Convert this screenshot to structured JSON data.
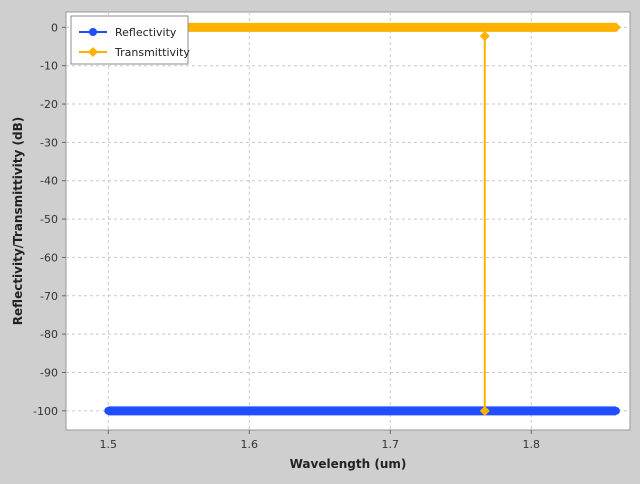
{
  "chart_data": {
    "type": "line",
    "title": "",
    "xlabel": "Wavelength (um)",
    "ylabel": "Reflectivity/Transmittivity (dB)",
    "xlim": [
      1.47,
      1.87
    ],
    "ylim": [
      -105,
      4
    ],
    "x_ticks": [
      1.5,
      1.6,
      1.7,
      1.8
    ],
    "x_tick_labels": [
      "1.5",
      "1.6",
      "1.7",
      "1.8"
    ],
    "y_ticks": [
      0,
      -10,
      -20,
      -30,
      -40,
      -50,
      -60,
      -70,
      -80,
      -90,
      -100
    ],
    "y_tick_labels": [
      "0",
      "-10",
      "-20",
      "-30",
      "-40",
      "-50",
      "-60",
      "-70",
      "-80",
      "-90",
      "-100"
    ],
    "grid": true,
    "legend_position": "top-left",
    "series": [
      {
        "name": "Reflectivity",
        "color": "#1f4dff",
        "marker": "circle",
        "x_range": [
          1.5,
          1.86
        ],
        "y": -100,
        "points": [
          [
            1.5,
            -100
          ],
          [
            1.86,
            -100
          ]
        ]
      },
      {
        "name": "Transmittivity",
        "color": "#ffb100",
        "marker": "diamond",
        "x_range": [
          1.5,
          1.86
        ],
        "y": 0,
        "points": [
          [
            1.5,
            0
          ],
          [
            1.766,
            0
          ],
          [
            1.767,
            -2.3
          ],
          [
            1.767,
            -100
          ],
          [
            1.768,
            0
          ],
          [
            1.86,
            0
          ]
        ]
      }
    ]
  }
}
